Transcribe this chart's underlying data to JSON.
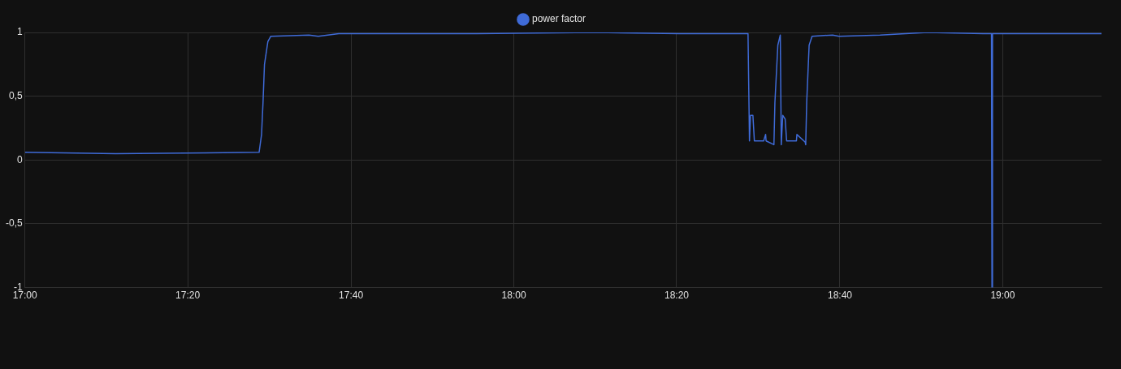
{
  "chart_data": {
    "type": "line",
    "x": [
      17.0,
      17.185,
      17.479,
      17.484,
      17.487,
      17.49,
      17.497,
      17.503,
      17.581,
      17.6,
      17.642,
      17.924,
      18.167,
      18.338,
      18.474,
      18.479,
      18.482,
      18.484,
      18.489,
      18.492,
      18.511,
      18.515,
      18.516,
      18.532,
      18.534,
      18.54,
      18.545,
      18.547,
      18.55,
      18.555,
      18.558,
      18.578,
      18.579,
      18.596,
      18.597,
      18.599,
      18.604,
      18.61,
      18.652,
      18.665,
      18.749,
      18.846,
      18.96,
      18.977,
      18.978,
      18.979,
      19.202
    ],
    "series": [
      {
        "name": "power factor",
        "color": "#3f6bd8",
        "values": [
          0.06,
          0.05,
          0.06,
          0.2,
          0.45,
          0.75,
          0.93,
          0.97,
          0.98,
          0.97,
          0.99,
          0.99,
          1.0,
          0.99,
          0.99,
          0.99,
          0.15,
          0.35,
          0.35,
          0.15,
          0.15,
          0.2,
          0.15,
          0.12,
          0.45,
          0.9,
          0.98,
          0.12,
          0.35,
          0.32,
          0.15,
          0.15,
          0.2,
          0.14,
          0.12,
          0.45,
          0.9,
          0.97,
          0.98,
          0.97,
          0.98,
          1.0,
          0.99,
          0.99,
          -1,
          0.99,
          0.99
        ]
      }
    ],
    "xlim": [
      17.0,
      19.202
    ],
    "xticks": [
      {
        "value": 17.0,
        "label": "17:00"
      },
      {
        "value": 17.333,
        "label": "17:20"
      },
      {
        "value": 17.667,
        "label": "17:40"
      },
      {
        "value": 18.0,
        "label": "18:00"
      },
      {
        "value": 18.333,
        "label": "18:20"
      },
      {
        "value": 18.667,
        "label": "18:40"
      },
      {
        "value": 19.0,
        "label": "19:00"
      }
    ],
    "ylim": [
      -1,
      1
    ],
    "yticks": [
      {
        "value": -1,
        "label": "-1"
      },
      {
        "value": -0.5,
        "label": "-0,5"
      },
      {
        "value": 0,
        "label": "0"
      },
      {
        "value": 0.5,
        "label": "0,5"
      },
      {
        "value": 1,
        "label": "1"
      }
    ],
    "grid": true,
    "legend": "top",
    "marker": "none",
    "line_style": "solid"
  }
}
